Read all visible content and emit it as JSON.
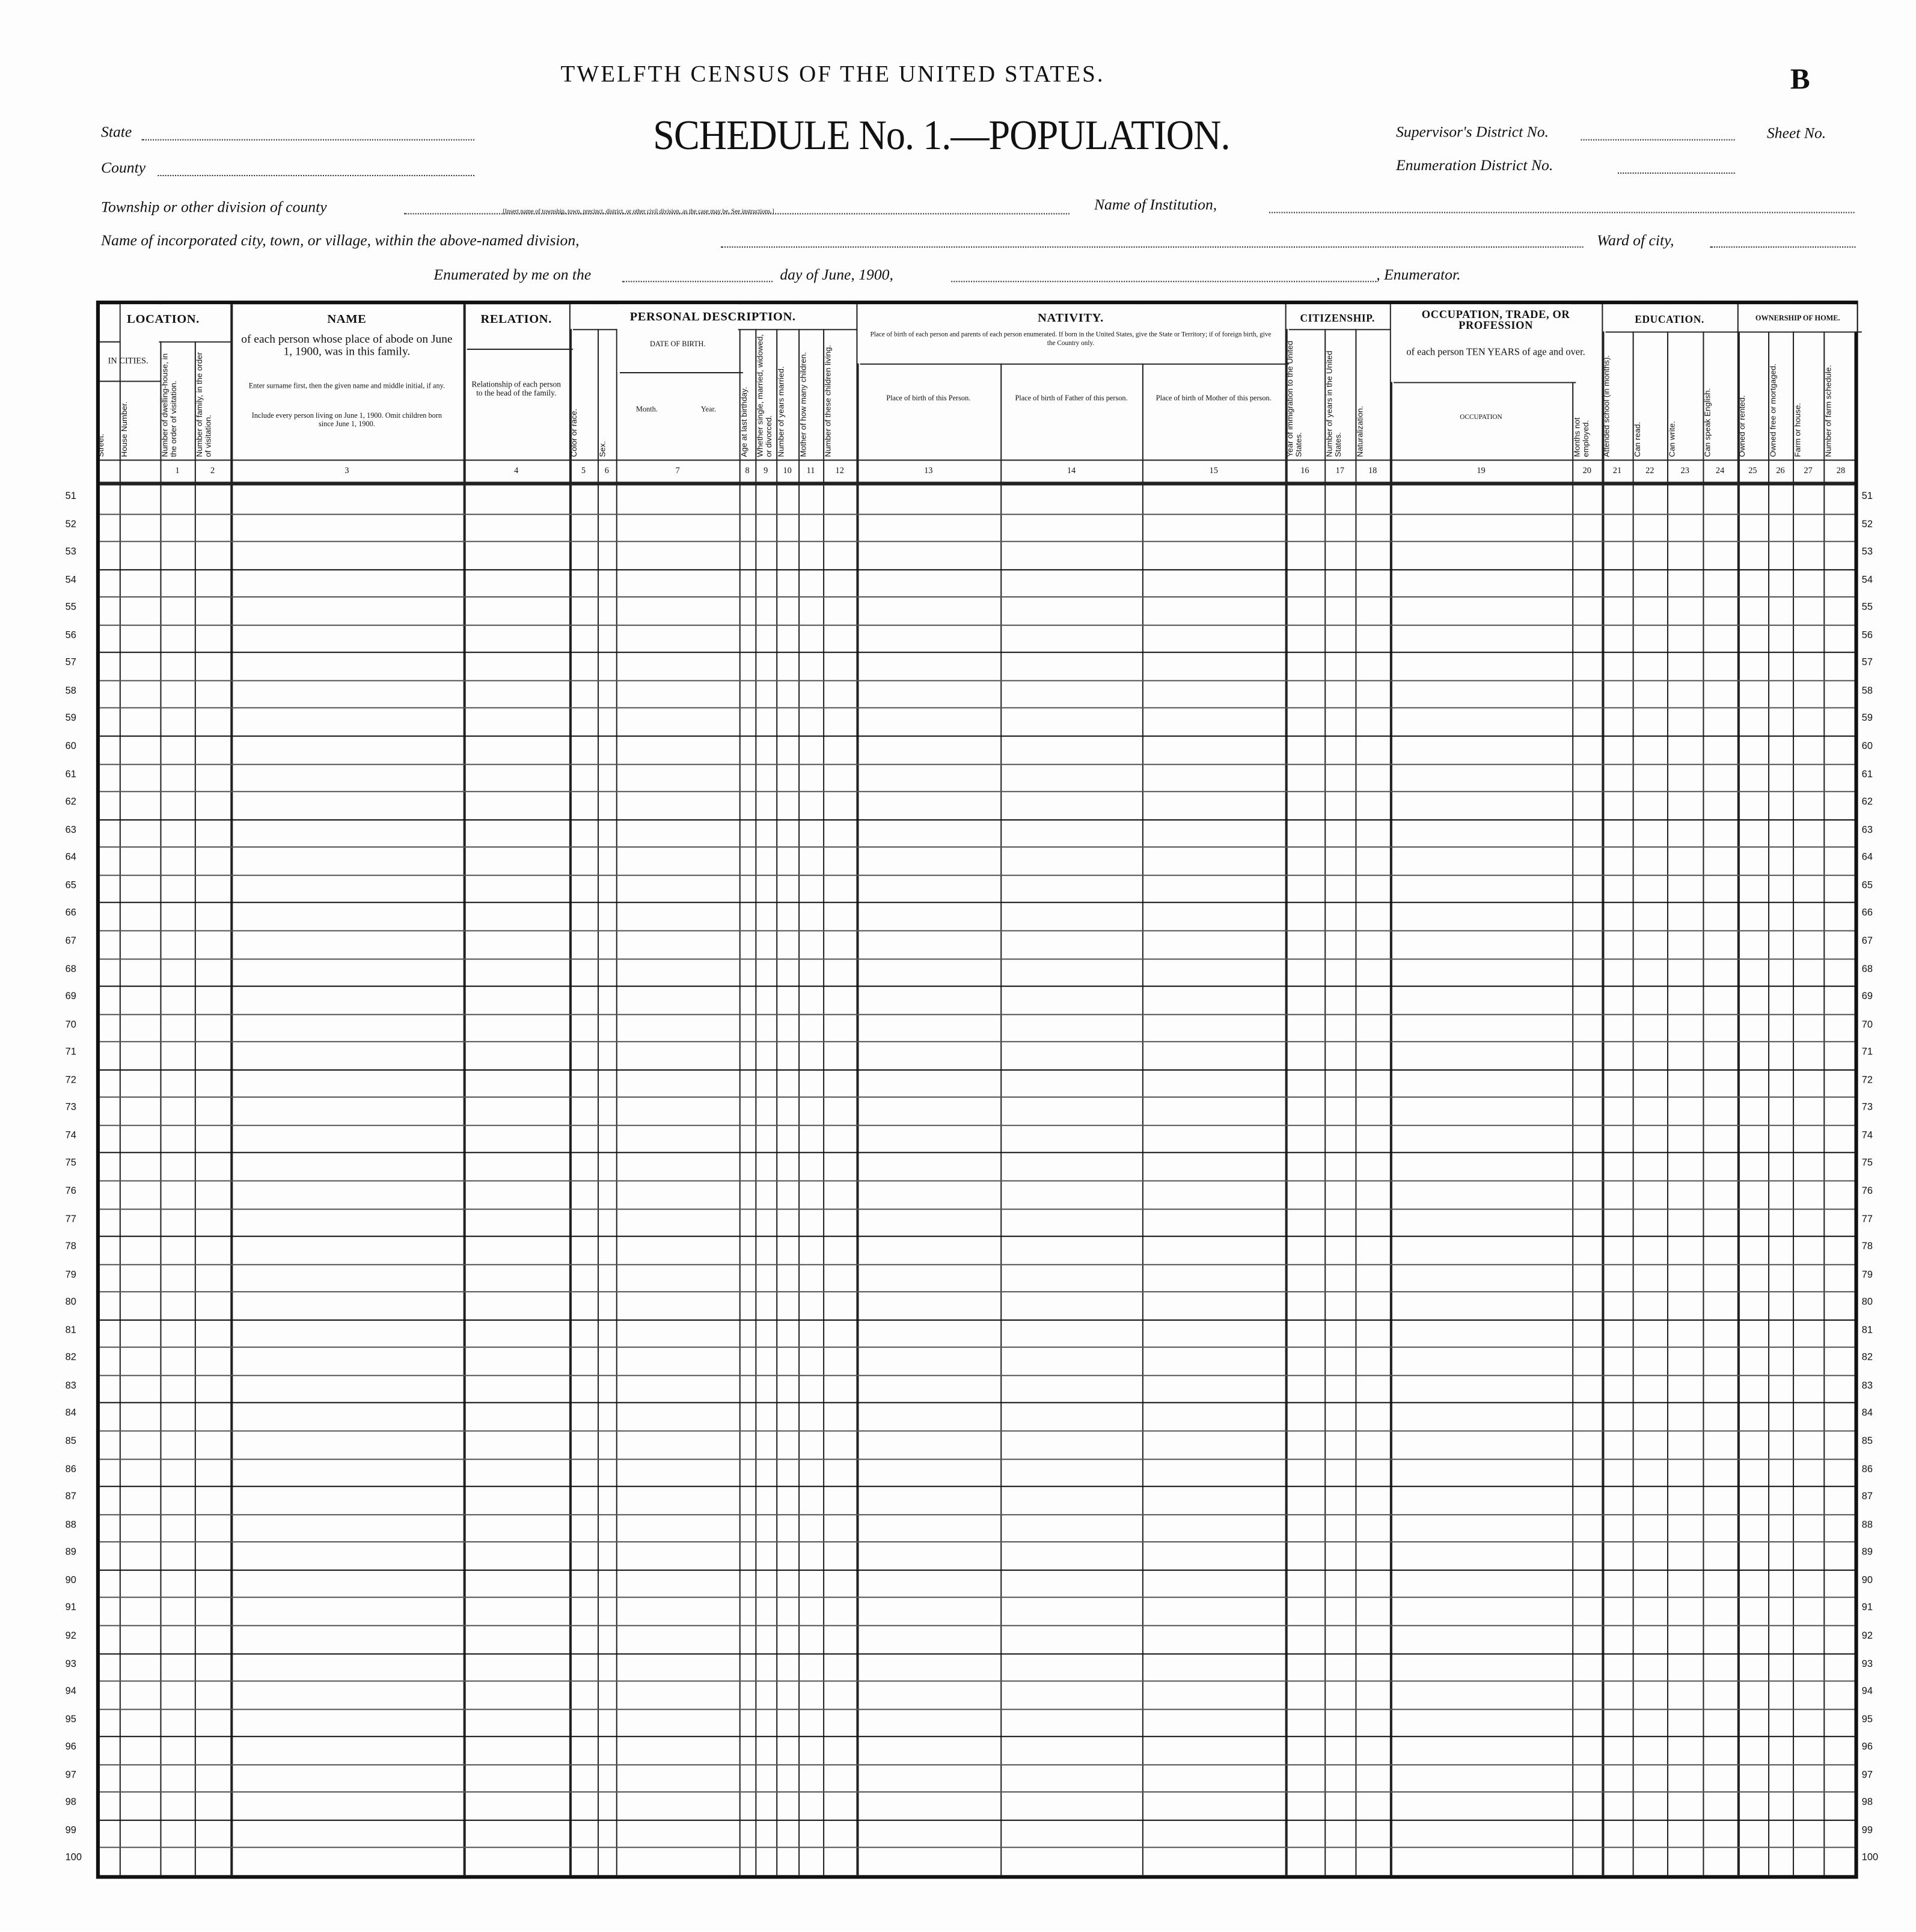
{
  "header": {
    "census_title": "TWELFTH CENSUS OF THE UNITED STATES.",
    "sheet_letter": "B",
    "schedule_title": "SCHEDULE No. 1.—POPULATION.",
    "state_label": "State",
    "county_label": "County",
    "supervisor_label": "Supervisor's District No.",
    "enumeration_district_label": "Enumeration District No.",
    "sheet_no_label": "Sheet No.",
    "township_label": "Township or other division of county",
    "township_note": "[Insert name of township, town, precinct, district, or other civil division, as the case may be. See instructions.]",
    "institution_label": "Name of Institution,",
    "city_label": "Name of incorporated city, town, or village, within the above-named division,",
    "ward_label": "Ward of city,",
    "enumerated_label": "Enumerated by me on the",
    "day_label": "day of June, 1900,",
    "enumerator_label": ", Enumerator."
  },
  "sections": {
    "location": "LOCATION.",
    "in_cities": "IN CITIES.",
    "name": "NAME",
    "name_desc": "of each person whose place of abode on June 1, 1900, was in this family.",
    "name_note1": "Enter surname first, then the given name and middle initial, if any.",
    "name_note2": "Include every person living on June 1, 1900. Omit children born since June 1, 1900.",
    "relation": "RELATION.",
    "relation_desc": "Relationship of each person to the head of the family.",
    "personal": "PERSONAL DESCRIPTION.",
    "date_of_birth": "DATE OF BIRTH.",
    "month": "Month.",
    "year": "Year.",
    "nativity": "NATIVITY.",
    "nativity_desc": "Place of birth of each person and parents of each person enumerated. If born in the United States, give the State or Territory; if of foreign birth, give the Country only.",
    "birth_person": "Place of birth of this Person.",
    "birth_father": "Place of birth of Father of this person.",
    "birth_mother": "Place of birth of Mother of this person.",
    "citizenship": "CITIZENSHIP.",
    "occupation": "OCCUPATION, TRADE, OR PROFESSION",
    "occupation_desc": "of each person TEN YEARS of age and over.",
    "occupation_col": "Occupation",
    "education": "EDUCATION.",
    "ownership": "OWNERSHIP OF HOME."
  },
  "vertical_headers": {
    "street": "Street.",
    "house": "House Number.",
    "c1": "Number of dwelling-house, in the order of visitation.",
    "c2": "Number of family, in the order of visitation.",
    "c5": "Color or race.",
    "c6": "Sex.",
    "c8": "Age at last birthday.",
    "c9": "Whether single, married, widowed, or divorced.",
    "c10": "Number of years married.",
    "c11": "Mother of how many children.",
    "c12": "Number of these children living.",
    "c16": "Year of immigration to the United States.",
    "c17": "Number of years in the United States.",
    "c18": "Naturalization.",
    "c20": "Months not employed.",
    "c21": "Attended school (in months).",
    "c22": "Can read.",
    "c23": "Can write.",
    "c24": "Can speak English.",
    "c25": "Owned or rented.",
    "c26": "Owned free or mortgaged.",
    "c27": "Farm or house.",
    "c28": "Number of farm schedule."
  },
  "column_numbers": [
    "1",
    "2",
    "3",
    "4",
    "5",
    "6",
    "7",
    "8",
    "9",
    "10",
    "11",
    "12",
    "13",
    "14",
    "15",
    "16",
    "17",
    "18",
    "19",
    "20",
    "21",
    "22",
    "23",
    "24",
    "25",
    "26",
    "27",
    "28"
  ],
  "line_numbers": [
    "51",
    "52",
    "53",
    "54",
    "55",
    "56",
    "57",
    "58",
    "59",
    "60",
    "61",
    "62",
    "63",
    "64",
    "65",
    "66",
    "67",
    "68",
    "69",
    "70",
    "71",
    "72",
    "73",
    "74",
    "75",
    "76",
    "77",
    "78",
    "79",
    "80",
    "81",
    "82",
    "83",
    "84",
    "85",
    "86",
    "87",
    "88",
    "89",
    "90",
    "91",
    "92",
    "93",
    "94",
    "95",
    "96",
    "97",
    "98",
    "99",
    "100"
  ]
}
